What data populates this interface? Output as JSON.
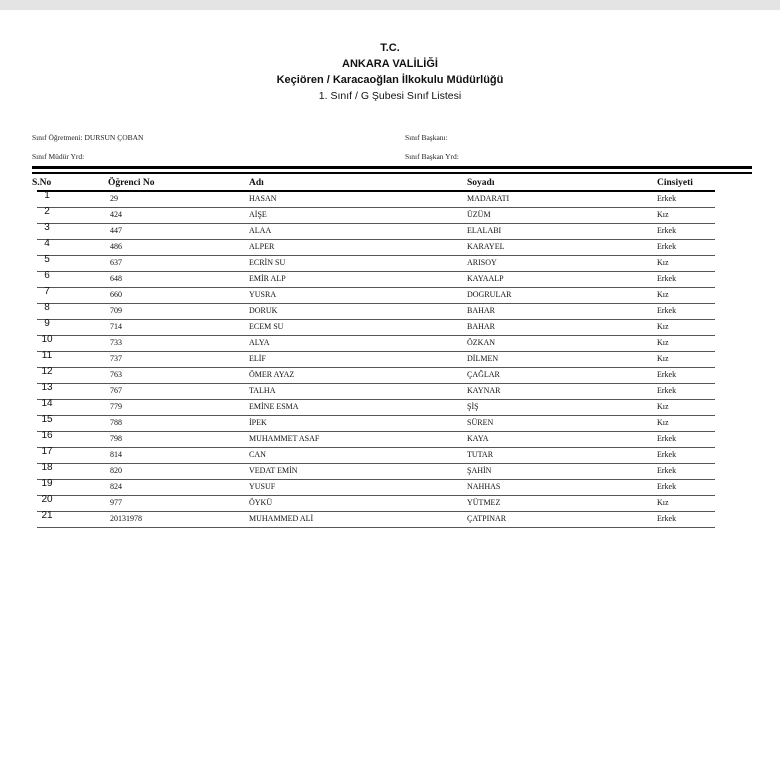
{
  "header": {
    "line1": "T.C.",
    "line2": "ANKARA VALİLİĞİ",
    "line3": "Keçiören / Karacaoğlan İlkokulu Müdürlüğü",
    "line4": "1. Sınıf / G Şubesi Sınıf Listesi"
  },
  "info": {
    "teacher": "Sınıf Öğretmeni: DURSUN ÇOBAN",
    "assistant_principal": "Sınıf Müdür Yrd:",
    "class_president": "Sınıf Başkanı:",
    "vice_president": "Sınıf Başkan Yrd:"
  },
  "table": {
    "columns": [
      "S.No",
      "Öğrenci No",
      "Adı",
      "Soyadı",
      "Cinsiyeti"
    ],
    "rows": [
      [
        "1",
        "29",
        "HASAN",
        "MADARATI",
        "Erkek"
      ],
      [
        "2",
        "424",
        "AİŞE",
        "ÜZÜM",
        "Kız"
      ],
      [
        "3",
        "447",
        "ALAA",
        "ELALABI",
        "Erkek"
      ],
      [
        "4",
        "486",
        "ALPER",
        "KARAYEL",
        "Erkek"
      ],
      [
        "5",
        "637",
        "ECRİN SU",
        "ARISOY",
        "Kız"
      ],
      [
        "6",
        "648",
        "EMİR ALP",
        "KAYAALP",
        "Erkek"
      ],
      [
        "7",
        "660",
        "YUSRA",
        "DOGRULAR",
        "Kız"
      ],
      [
        "8",
        "709",
        "DORUK",
        "BAHAR",
        "Erkek"
      ],
      [
        "9",
        "714",
        "ECEM SU",
        "BAHAR",
        "Kız"
      ],
      [
        "10",
        "733",
        "ALYA",
        "ÖZKAN",
        "Kız"
      ],
      [
        "11",
        "737",
        "ELİF",
        "DİLMEN",
        "Kız"
      ],
      [
        "12",
        "763",
        "ÖMER AYAZ",
        "ÇAĞLAR",
        "Erkek"
      ],
      [
        "13",
        "767",
        "TALHA",
        "KAYNAR",
        "Erkek"
      ],
      [
        "14",
        "779",
        "EMİNE ESMA",
        "ŞİŞ",
        "Kız"
      ],
      [
        "15",
        "788",
        "İPEK",
        "SÜREN",
        "Kız"
      ],
      [
        "16",
        "798",
        "MUHAMMET ASAF",
        "KAYA",
        "Erkek"
      ],
      [
        "17",
        "814",
        "CAN",
        "TUTAR",
        "Erkek"
      ],
      [
        "18",
        "820",
        "VEDAT EMİN",
        "ŞAHİN",
        "Erkek"
      ],
      [
        "19",
        "824",
        "YUSUF",
        "NAHHAS",
        "Erkek"
      ],
      [
        "20",
        "977",
        "ÖYKÜ",
        "YÜTMEZ",
        "Kız"
      ],
      [
        "21",
        "20131978",
        "MUHAMMED ALİ",
        "ÇATPINAR",
        "Erkek"
      ]
    ]
  }
}
